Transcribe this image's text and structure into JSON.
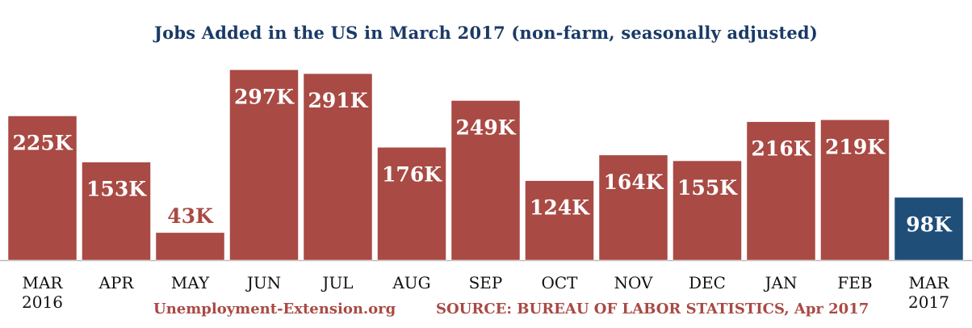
{
  "chart_data": {
    "type": "bar",
    "title": "Jobs Added in the US in March 2017 (non-farm, seasonally adjusted)",
    "categories": [
      [
        "MAR",
        "2016"
      ],
      [
        "APR"
      ],
      [
        "MAY"
      ],
      [
        "JUN"
      ],
      [
        "JUL"
      ],
      [
        "AUG"
      ],
      [
        "SEP"
      ],
      [
        "OCT"
      ],
      [
        "NOV"
      ],
      [
        "DEC"
      ],
      [
        "JAN"
      ],
      [
        "FEB"
      ],
      [
        "MAR",
        "2017"
      ]
    ],
    "values": [
      225,
      153,
      43,
      297,
      291,
      176,
      249,
      124,
      164,
      155,
      216,
      219,
      98
    ],
    "labels": [
      "225K",
      "153K",
      "43K",
      "297K",
      "291K",
      "176K",
      "249K",
      "124K",
      "164K",
      "155K",
      "216K",
      "219K",
      "98K"
    ],
    "ylim": [
      0,
      300
    ],
    "grid": false,
    "colors": {
      "bar": "#a94a44",
      "highlight_bar": "#1f4e79",
      "label_inside": "#ffffff",
      "label_outside": "#a94a44",
      "title": "#1a3a66",
      "axis": "#bbbbbb"
    },
    "highlight_index": 12
  },
  "footer": {
    "site": "Unemployment-Extension.org",
    "source": "SOURCE: BUREAU OF LABOR STATISTICS, Apr 2017"
  }
}
